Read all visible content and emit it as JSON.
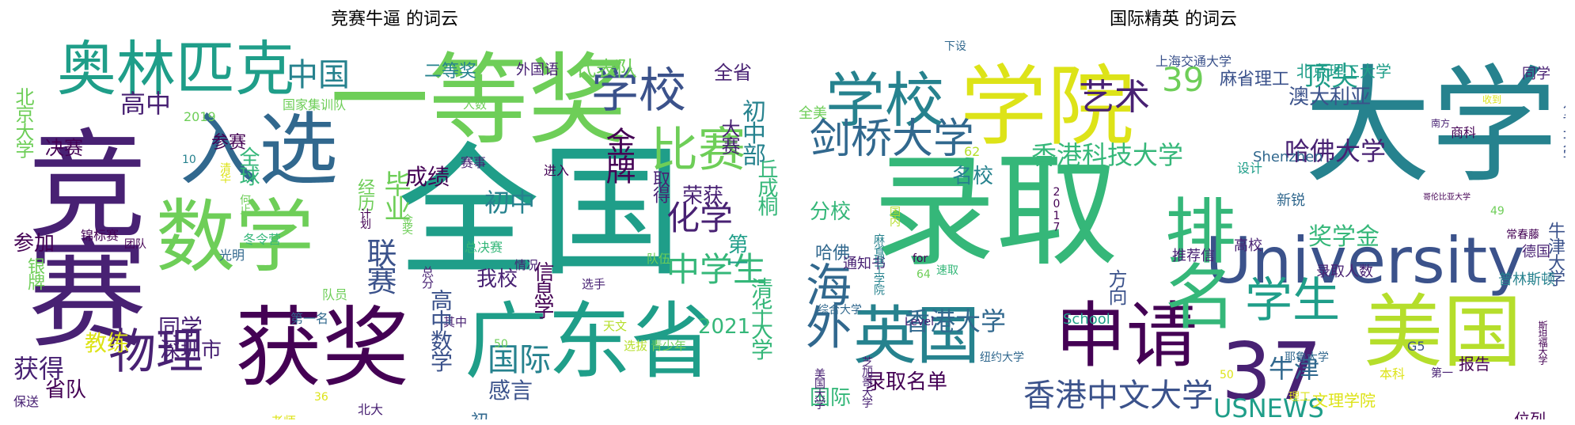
{
  "figure": {
    "panels": [
      {
        "title": "竞赛牛逼 的词云",
        "words": [
          "竞赛",
          "全国",
          "获奖",
          "一等奖",
          "广东省",
          "入选",
          "数学",
          "奥林匹克",
          "学校",
          "比赛",
          "中国",
          "物理",
          "高中",
          "化学",
          "中学生",
          "金牌",
          "联赛",
          "毕业",
          "国际",
          "初中部",
          "大赛",
          "代表队",
          "全省",
          "二等奖",
          "外国语",
          "队伍",
          "国家集训队",
          "人数",
          "2019",
          "10",
          "决赛",
          "北京大学",
          "参赛",
          "全球",
          "成绩",
          "初中",
          "荣获",
          "取得",
          "丘成桐",
          "第一",
          "2021",
          "信息学",
          "我校",
          "经历",
          "同学",
          "深圳市",
          "获得",
          "教练",
          "省队",
          "保送",
          "锦标赛",
          "团队",
          "光明",
          "冬令营",
          "计划",
          "金奖",
          "何止",
          "清华",
          "赛事",
          "进入",
          "总决赛",
          "情况",
          "选手",
          "总分",
          "队员",
          "第一名",
          "其中",
          "天文",
          "青少年",
          "选拔",
          "初赛",
          "高中数学",
          "清华大学",
          "感言",
          "北大",
          "老师",
          "36",
          "50",
          "银牌",
          "参加"
        ]
      },
      {
        "title": "国际精英 的词云",
        "words": [
          "录取",
          "大学",
          "学院",
          "学校",
          "University",
          "美国",
          "申请",
          "英国",
          "37",
          "排名",
          "海外",
          "剑桥大学",
          "艺术",
          "39",
          "香港科技大学",
          "香港中文大学",
          "学生",
          "香港大学",
          "牛津",
          "USNEWS",
          "哈佛大学",
          "顶尖",
          "澳大利亚",
          "麻省理工",
          "北京理工大学",
          "上海交通大学",
          "名校",
          "分校",
          "62",
          "哈佛",
          "全美",
          "通知书",
          "奖学金",
          "录取人数",
          "高校",
          "新锐",
          "推荐信",
          "方向",
          "School",
          "录取名单",
          "国际",
          "设计",
          "商科",
          "同学",
          "收到",
          "南方",
          "哥伦比亚大学",
          "Shenzhen",
          "复旦大学",
          "牛津大学",
          "德国",
          "普林斯顿",
          "常春藤",
          "报告",
          "位列",
          "G5",
          "本科",
          "文理学院",
          "第一",
          "理工",
          "斯坦福大学",
          "新加坡大学",
          "耶鲁大学",
          "50",
          "纽约大学",
          "美国大学",
          "Level",
          "64",
          "for",
          "速取",
          "麻省理工学院",
          "芝加哥大学",
          "综合大学",
          "国内",
          "2017",
          "49",
          "下设",
          "海外",
          "申请人"
        ]
      }
    ]
  }
}
